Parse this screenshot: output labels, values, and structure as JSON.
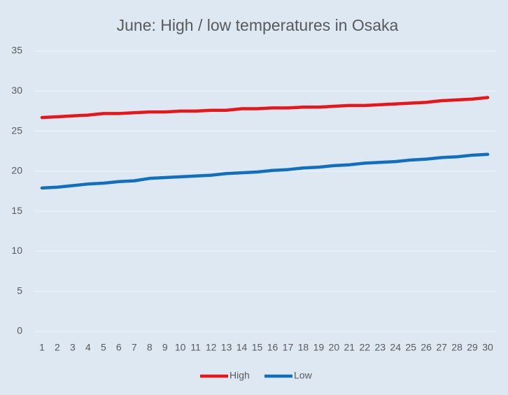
{
  "chart_data": {
    "type": "line",
    "title": "June: High / low temperatures in Osaka",
    "categories": [
      "1",
      "2",
      "3",
      "4",
      "5",
      "6",
      "7",
      "8",
      "9",
      "10",
      "11",
      "12",
      "13",
      "14",
      "15",
      "16",
      "17",
      "18",
      "19",
      "20",
      "21",
      "22",
      "23",
      "24",
      "25",
      "26",
      "27",
      "28",
      "29",
      "30"
    ],
    "series": [
      {
        "name": "High",
        "color": "#e8161b",
        "values": [
          26.7,
          26.8,
          26.9,
          27.0,
          27.2,
          27.2,
          27.3,
          27.4,
          27.4,
          27.5,
          27.5,
          27.6,
          27.6,
          27.8,
          27.8,
          27.9,
          27.9,
          28.0,
          28.0,
          28.1,
          28.2,
          28.2,
          28.3,
          28.4,
          28.5,
          28.6,
          28.8,
          28.9,
          29.0,
          29.2
        ]
      },
      {
        "name": "Low",
        "color": "#1170bd",
        "values": [
          17.9,
          18.0,
          18.2,
          18.4,
          18.5,
          18.7,
          18.8,
          19.1,
          19.2,
          19.3,
          19.4,
          19.5,
          19.7,
          19.8,
          19.9,
          20.1,
          20.2,
          20.4,
          20.5,
          20.7,
          20.8,
          21.0,
          21.1,
          21.2,
          21.4,
          21.5,
          21.7,
          21.8,
          22.0,
          22.1
        ]
      }
    ],
    "ylim": [
      0,
      35
    ],
    "yticks": [
      0,
      5,
      10,
      15,
      20,
      25,
      30,
      35
    ],
    "grid": true,
    "legend": "bottom"
  }
}
